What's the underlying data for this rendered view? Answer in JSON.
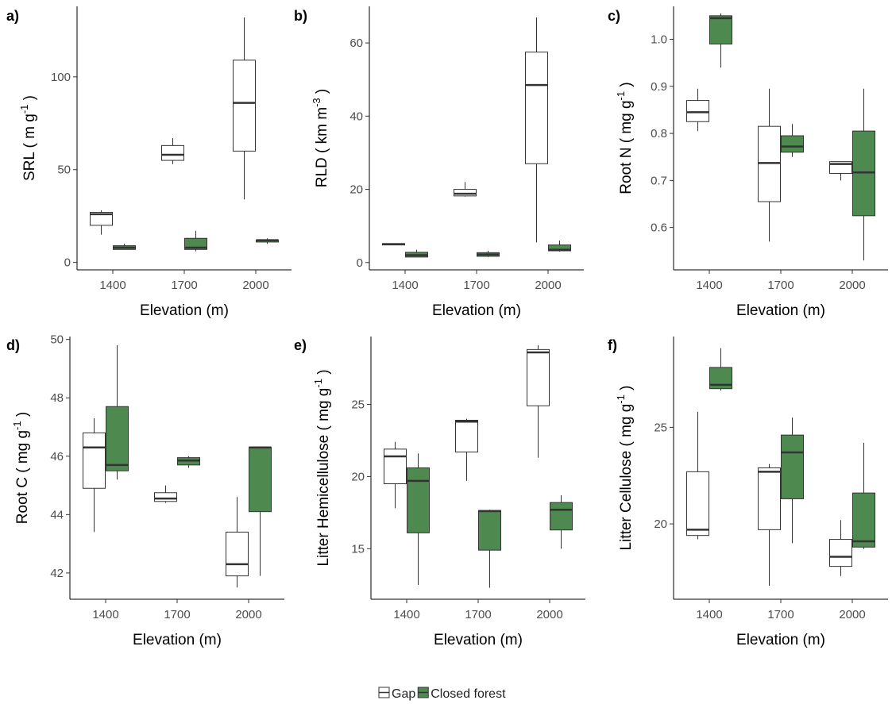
{
  "legend": {
    "items": [
      {
        "label": "Gap",
        "fill": "#ffffff"
      },
      {
        "label": "Closed forest",
        "fill": "#4e8a50"
      }
    ]
  },
  "colors": {
    "gap": "#ffffff",
    "closed": "#4e8a50",
    "stroke": "#333333"
  },
  "chart_data": [
    {
      "type": "boxplot",
      "panel": "a)",
      "xlabel": "Elevation (m)",
      "ylabel_parts": [
        "SRL ( m g",
        "-1",
        " )"
      ],
      "categories": [
        "1400",
        "1700",
        "2000"
      ],
      "yticks": [
        0,
        50,
        100
      ],
      "ylim": [
        -4,
        138
      ],
      "series": [
        {
          "name": "Gap",
          "boxes": [
            {
              "min": 15,
              "q1": 20,
              "median": 26,
              "q3": 27,
              "max": 28
            },
            {
              "min": 53,
              "q1": 55,
              "median": 58,
              "q3": 63,
              "max": 67
            },
            {
              "min": 34,
              "q1": 60,
              "median": 86,
              "q3": 109,
              "max": 132
            }
          ]
        },
        {
          "name": "Closed forest",
          "boxes": [
            {
              "min": 7,
              "q1": 7,
              "median": 8,
              "q3": 9,
              "max": 10
            },
            {
              "min": 6,
              "q1": 7,
              "median": 8,
              "q3": 13,
              "max": 17
            },
            {
              "min": 10,
              "q1": 11,
              "median": 12,
              "q3": 12,
              "max": 13
            }
          ]
        }
      ]
    },
    {
      "type": "boxplot",
      "panel": "b)",
      "xlabel": "Elevation (m)",
      "ylabel_parts": [
        "RLD ( km m",
        "-3",
        " )"
      ],
      "categories": [
        "1400",
        "1700",
        "2000"
      ],
      "yticks": [
        0,
        20,
        40,
        60
      ],
      "ylim": [
        -2,
        70
      ],
      "series": [
        {
          "name": "Gap",
          "boxes": [
            {
              "min": 4.8,
              "q1": 4.8,
              "median": 5,
              "q3": 5.2,
              "max": 5.2
            },
            {
              "min": 18,
              "q1": 18.2,
              "median": 18.8,
              "q3": 20,
              "max": 22
            },
            {
              "min": 5.5,
              "q1": 27,
              "median": 48.5,
              "q3": 57.5,
              "max": 67
            }
          ]
        },
        {
          "name": "Closed forest",
          "boxes": [
            {
              "min": 1.5,
              "q1": 1.5,
              "median": 2,
              "q3": 2.8,
              "max": 3.5
            },
            {
              "min": 1.5,
              "q1": 1.7,
              "median": 2.2,
              "q3": 2.7,
              "max": 3.2
            },
            {
              "min": 3,
              "q1": 3.2,
              "median": 3.5,
              "q3": 4.8,
              "max": 6
            }
          ]
        }
      ]
    },
    {
      "type": "boxplot",
      "panel": "c)",
      "xlabel": "Elevation (m)",
      "ylabel_parts": [
        "Root N ( mg g",
        "-1",
        " )"
      ],
      "categories": [
        "1400",
        "1700",
        "2000"
      ],
      "yticks": [
        0.6,
        0.7,
        0.8,
        0.9,
        1.0
      ],
      "ytick_labels": [
        "0.6",
        "0.7",
        "0.8",
        "0.9",
        "1.0"
      ],
      "ylim": [
        0.51,
        1.07
      ],
      "series": [
        {
          "name": "Gap",
          "boxes": [
            {
              "min": 0.805,
              "q1": 0.825,
              "median": 0.845,
              "q3": 0.87,
              "max": 0.895
            },
            {
              "min": 0.57,
              "q1": 0.655,
              "median": 0.737,
              "q3": 0.815,
              "max": 0.895
            },
            {
              "min": 0.7,
              "q1": 0.715,
              "median": 0.735,
              "q3": 0.74,
              "max": 0.74
            }
          ]
        },
        {
          "name": "Closed forest",
          "boxes": [
            {
              "min": 0.94,
              "q1": 0.99,
              "median": 1.045,
              "q3": 1.05,
              "max": 1.055
            },
            {
              "min": 0.75,
              "q1": 0.76,
              "median": 0.772,
              "q3": 0.795,
              "max": 0.82
            },
            {
              "min": 0.53,
              "q1": 0.625,
              "median": 0.717,
              "q3": 0.805,
              "max": 0.895
            }
          ]
        }
      ]
    },
    {
      "type": "boxplot",
      "panel": "d)",
      "xlabel": "Elevation (m)",
      "ylabel_parts": [
        "Root C ( mg g",
        "-1",
        " )"
      ],
      "categories": [
        "1400",
        "1700",
        "2000"
      ],
      "yticks": [
        42,
        44,
        46,
        48,
        50
      ],
      "ylim": [
        41.1,
        50.1
      ],
      "series": [
        {
          "name": "Gap",
          "boxes": [
            {
              "min": 43.4,
              "q1": 44.9,
              "median": 46.3,
              "q3": 46.8,
              "max": 47.3
            },
            {
              "min": 44.4,
              "q1": 44.45,
              "median": 44.55,
              "q3": 44.75,
              "max": 45
            },
            {
              "min": 41.5,
              "q1": 41.9,
              "median": 42.3,
              "q3": 43.4,
              "max": 44.6
            }
          ]
        },
        {
          "name": "Closed forest",
          "boxes": [
            {
              "min": 45.2,
              "q1": 45.5,
              "median": 45.7,
              "q3": 47.7,
              "max": 49.8
            },
            {
              "min": 45.6,
              "q1": 45.7,
              "median": 45.85,
              "q3": 45.95,
              "max": 46
            },
            {
              "min": 41.9,
              "q1": 44.1,
              "median": 46.3,
              "q3": 46.3,
              "max": 46.3
            }
          ]
        }
      ]
    },
    {
      "type": "boxplot",
      "panel": "e)",
      "xlabel": "Elevation (m)",
      "ylabel_parts": [
        "Litter Hemicellulose ( mg g",
        "-1",
        " )"
      ],
      "categories": [
        "1400",
        "1700",
        "2000"
      ],
      "yticks": [
        15,
        20,
        25
      ],
      "ylim": [
        11.5,
        29.7
      ],
      "series": [
        {
          "name": "Gap",
          "boxes": [
            {
              "min": 17.8,
              "q1": 19.5,
              "median": 21.4,
              "q3": 21.9,
              "max": 22.4
            },
            {
              "min": 19.7,
              "q1": 21.7,
              "median": 23.8,
              "q3": 23.9,
              "max": 24
            },
            {
              "min": 21.3,
              "q1": 24.9,
              "median": 28.6,
              "q3": 28.8,
              "max": 29.1
            }
          ]
        },
        {
          "name": "Closed forest",
          "boxes": [
            {
              "min": 12.5,
              "q1": 16.1,
              "median": 19.7,
              "q3": 20.6,
              "max": 21.6
            },
            {
              "min": 12.3,
              "q1": 14.9,
              "median": 17.6,
              "q3": 17.65,
              "max": 17.7
            },
            {
              "min": 15,
              "q1": 16.3,
              "median": 17.7,
              "q3": 18.2,
              "max": 18.7
            }
          ]
        }
      ]
    },
    {
      "type": "boxplot",
      "panel": "f)",
      "xlabel": "Elevation (m)",
      "ylabel_parts": [
        "Litter Cellulose ( mg g",
        "-1",
        " )"
      ],
      "categories": [
        "1400",
        "1700",
        "2000"
      ],
      "yticks": [
        20,
        25
      ],
      "ylim": [
        16.1,
        29.7
      ],
      "series": [
        {
          "name": "Gap",
          "boxes": [
            {
              "min": 19.2,
              "q1": 19.4,
              "median": 19.7,
              "q3": 22.7,
              "max": 25.8
            },
            {
              "min": 16.8,
              "q1": 19.7,
              "median": 22.7,
              "q3": 22.9,
              "max": 23.1
            },
            {
              "min": 17.3,
              "q1": 17.8,
              "median": 18.3,
              "q3": 19.2,
              "max": 20.2
            }
          ]
        },
        {
          "name": "Closed forest",
          "boxes": [
            {
              "min": 26.9,
              "q1": 27,
              "median": 27.2,
              "q3": 28.1,
              "max": 29.1
            },
            {
              "min": 19,
              "q1": 21.3,
              "median": 23.7,
              "q3": 24.6,
              "max": 25.5
            },
            {
              "min": 18.7,
              "q1": 18.8,
              "median": 19.1,
              "q3": 21.6,
              "max": 24.2
            }
          ]
        }
      ]
    }
  ]
}
